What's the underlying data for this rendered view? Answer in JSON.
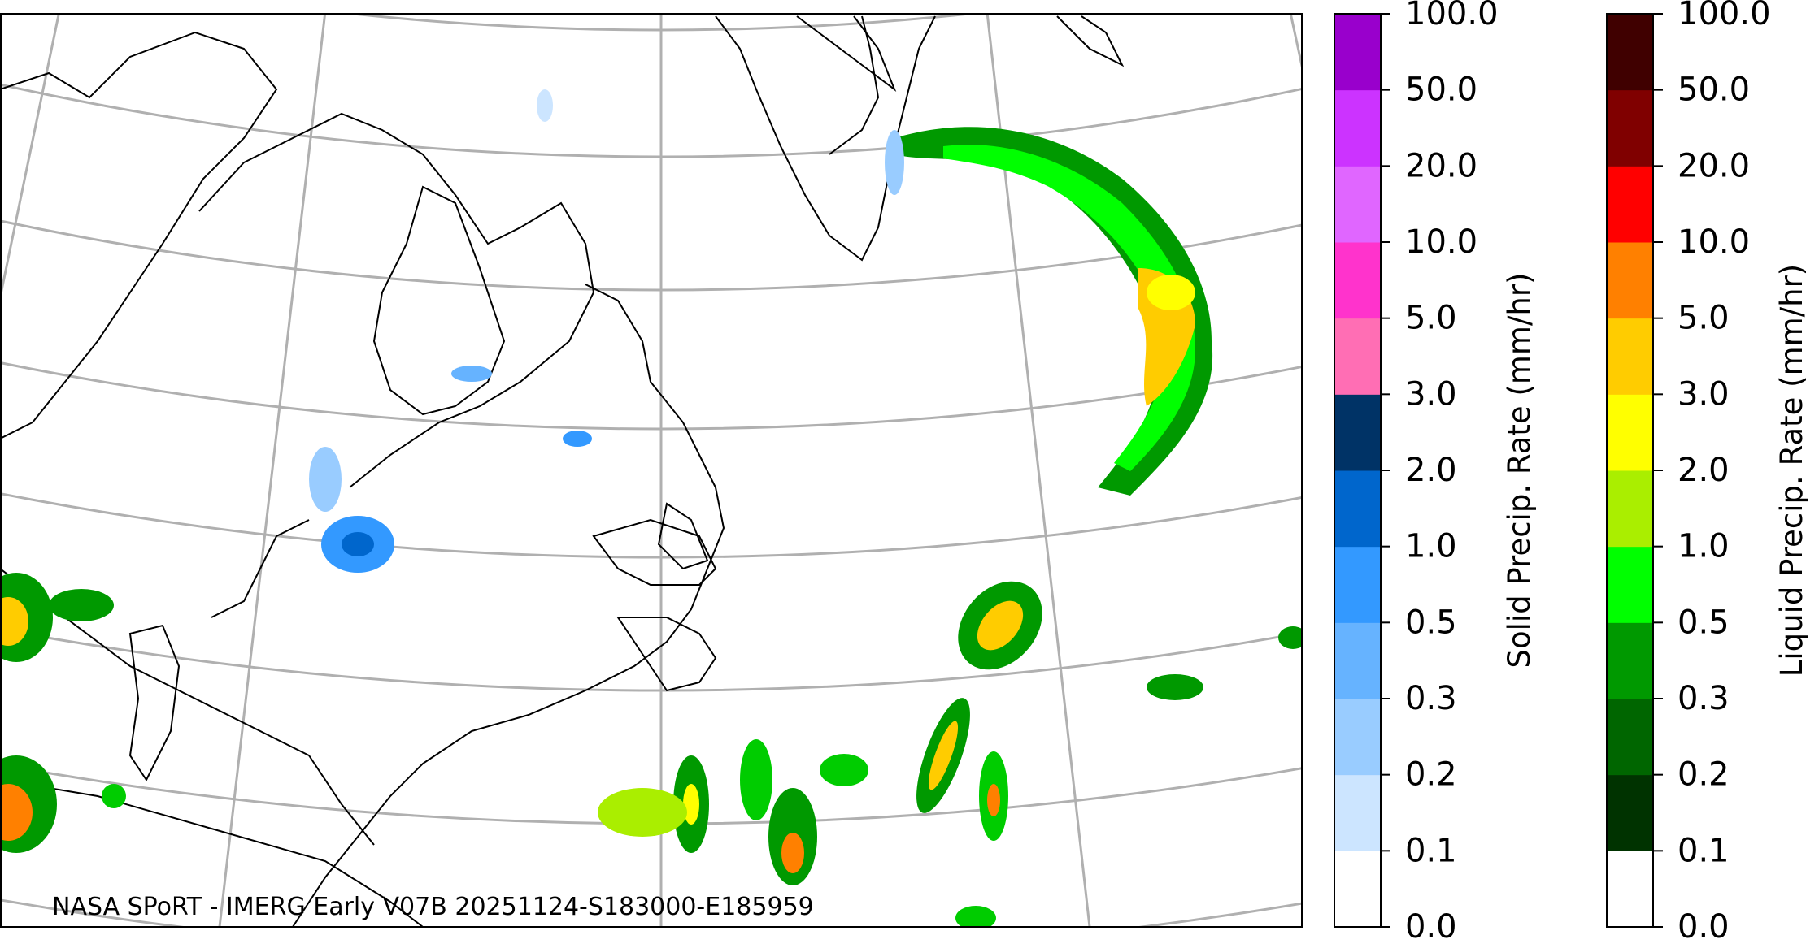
{
  "map": {
    "caption": "NASA SPoRT - IMERG Early V07B 20251124-S183000-E185959"
  },
  "colorbars": [
    {
      "label": "Solid Precip. Rate (mm/hr)",
      "colors": [
        "#ffffff",
        "#cce5ff",
        "#99ccff",
        "#66b3ff",
        "#3399ff",
        "#0066cc",
        "#003366",
        "#ff6eb4",
        "#ff33cc",
        "#e066ff",
        "#cc33ff",
        "#9900cc"
      ],
      "ticks": [
        {
          "value": 0,
          "label": "0.0"
        },
        0.1,
        0.2,
        0.3,
        0.5,
        {
          "value": 1,
          "label": "1.0"
        },
        {
          "value": 2,
          "label": "2.0"
        },
        {
          "value": 3,
          "label": "3.0"
        },
        {
          "value": 5,
          "label": "5.0"
        },
        {
          "value": 10,
          "label": "10.0"
        },
        {
          "value": 20,
          "label": "20.0"
        },
        {
          "value": 50,
          "label": "50.0"
        },
        {
          "value": 100,
          "label": "100.0"
        }
      ]
    },
    {
      "label": "Liquid Precip. Rate (mm/hr)",
      "colors": [
        "#ffffff",
        "#003300",
        "#006600",
        "#009900",
        "#00ff00",
        "#aaee00",
        "#ffff00",
        "#ffcc00",
        "#ff8000",
        "#ff0000",
        "#800000",
        "#400000"
      ],
      "ticks": [
        {
          "value": 0,
          "label": "0.0"
        },
        0.1,
        0.2,
        0.3,
        0.5,
        {
          "value": 1,
          "label": "1.0"
        },
        {
          "value": 2,
          "label": "2.0"
        },
        {
          "value": 3,
          "label": "3.0"
        },
        {
          "value": 5,
          "label": "5.0"
        },
        {
          "value": 10,
          "label": "10.0"
        },
        {
          "value": 20,
          "label": "20.0"
        },
        {
          "value": 50,
          "label": "50.0"
        },
        {
          "value": 100,
          "label": "100.0"
        }
      ]
    }
  ]
}
